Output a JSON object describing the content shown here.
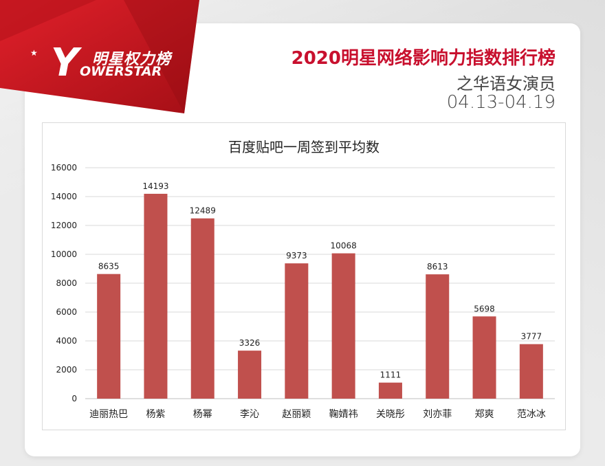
{
  "brand": {
    "logo_cn": "明星权力榜",
    "logo_en": "OWERSTAR",
    "logo_y": "Y",
    "star": "★"
  },
  "header": {
    "title": "2020明星网络影响力指数排行榜",
    "subtitle": "之华语女演员",
    "date_range": "04.13-04.19"
  },
  "colors": {
    "accent": "#c8102e",
    "bar": "#c0504d"
  },
  "chart_data": {
    "type": "bar",
    "title": "百度贴吧一周签到平均数",
    "categories": [
      "迪丽热巴",
      "杨紫",
      "杨幂",
      "李沁",
      "赵丽颖",
      "鞠婧祎",
      "关晓彤",
      "刘亦菲",
      "郑爽",
      "范冰冰"
    ],
    "values": [
      8635,
      14193,
      12489,
      3326,
      9373,
      10068,
      1111,
      8613,
      5698,
      3777
    ],
    "ylim": [
      0,
      16000
    ],
    "yticks": [
      0,
      2000,
      4000,
      6000,
      8000,
      10000,
      12000,
      14000,
      16000
    ],
    "grid": true,
    "xlabel": "",
    "ylabel": ""
  }
}
